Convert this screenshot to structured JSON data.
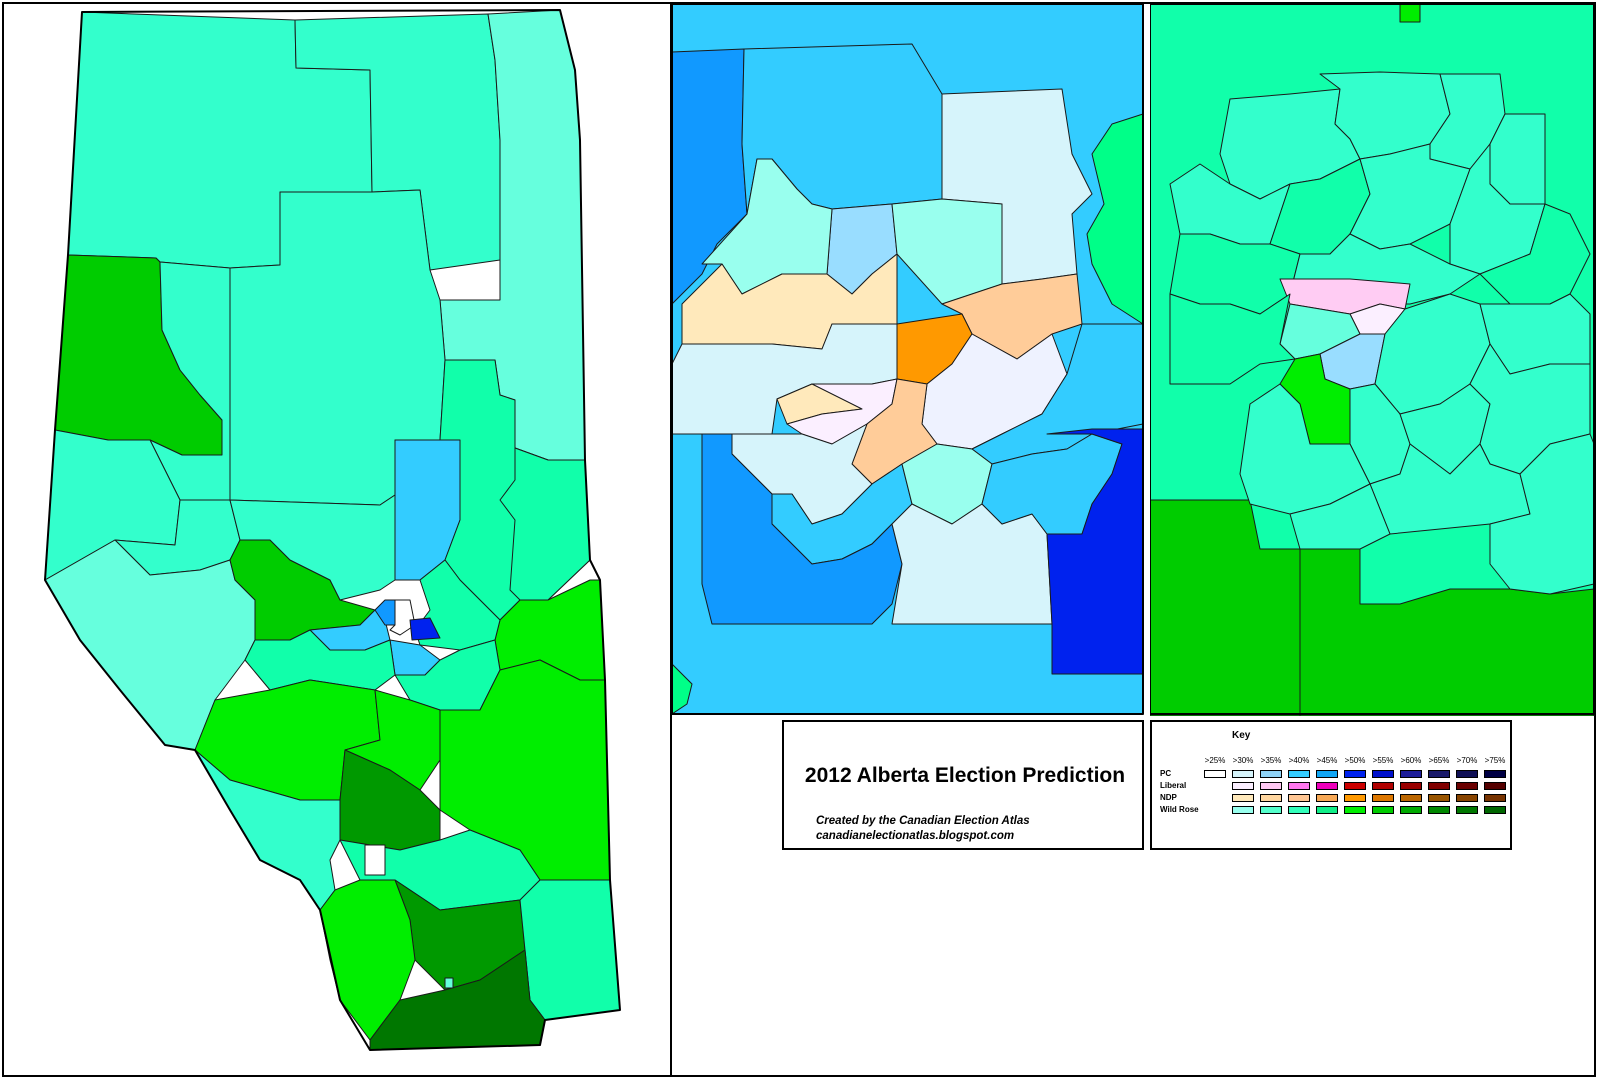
{
  "title": "2012 Alberta Election Prediction",
  "credit": {
    "line1": "Created by the Canadian Election Atlas",
    "line2": "canadianelectionatlas.blogspot.com"
  },
  "key": {
    "title": "Key",
    "thresholds": [
      ">25%",
      ">30%",
      ">35%",
      ">40%",
      ">45%",
      ">50%",
      ">55%",
      ">60%",
      ">65%",
      ">70%",
      ">75%"
    ],
    "parties": [
      {
        "name": "PC",
        "colors": [
          "#ffffff",
          "#d6f4fb",
          "#8fd3f7",
          "#33ccff",
          "#11a6f5",
          "#0022ee",
          "#0011cc",
          "#1d1d99",
          "#1a1a6a",
          "#0f0f55",
          "#000044"
        ]
      },
      {
        "name": "Liberal",
        "colors": [
          null,
          "#fbefff",
          "#ffc8f3",
          "#ff77ee",
          "#ee00bb",
          "#cc0000",
          "#b00000",
          "#990000",
          "#800000",
          "#6a0000",
          "#550000"
        ]
      },
      {
        "name": "NDP",
        "colors": [
          null,
          "#ffe9bb",
          "#ffd69f",
          "#ffc693",
          "#f7a855",
          "#ff9900",
          "#dd7700",
          "#bb6600",
          "#995500",
          "#884400",
          "#773300"
        ]
      },
      {
        "name": "Wild Rose",
        "colors": [
          null,
          "#99ffee",
          "#55ffcc",
          "#33ffbb",
          "#11ee88",
          "#00ee00",
          "#00cc00",
          "#00aa00",
          "#008800",
          "#007700",
          "#006600"
        ]
      }
    ]
  },
  "colors": {
    "wr30": "#66ffdd",
    "wr35": "#33ffcc",
    "wr40": "#11ffaa",
    "wr45": "#00ff88",
    "wr50": "#00ee00",
    "wr55": "#00cc00",
    "wr60": "#009900",
    "wr65": "#008800",
    "pc30": "#d6f4fb",
    "pc35": "#99ddff",
    "pc40": "#33ccff",
    "pc45": "#1199ff",
    "pc50": "#0022ee",
    "ndp30": "#ffe9bb",
    "ndp35": "#ffcc99",
    "ndp50": "#ff9900",
    "lib30": "#fbefff",
    "lib35": "#ffccf3",
    "tie": "#ffffff"
  }
}
